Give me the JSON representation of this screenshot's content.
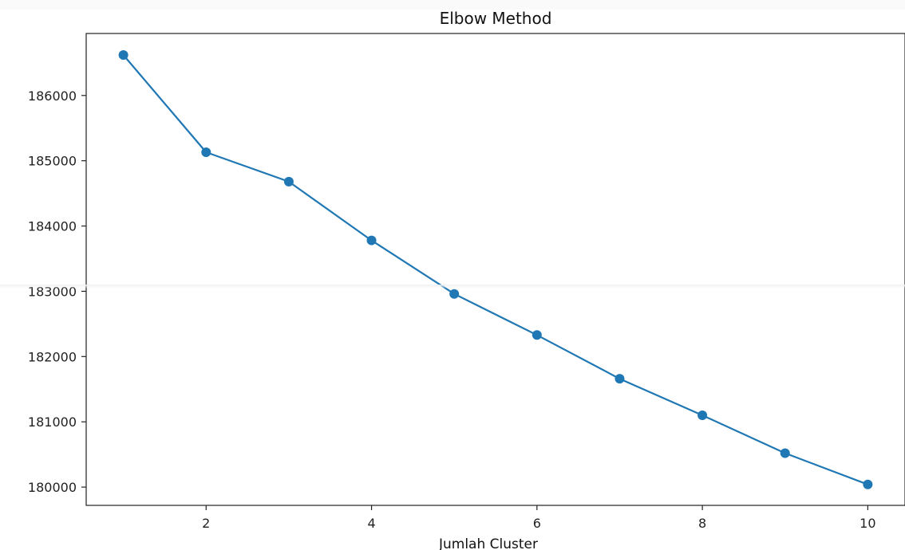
{
  "chart_data": {
    "type": "line",
    "title": "Elbow Method",
    "xlabel": "Jumlah Cluster",
    "ylabel": "",
    "x": [
      1,
      2,
      3,
      4,
      5,
      6,
      7,
      8,
      9,
      10
    ],
    "series": [
      {
        "values": [
          186620,
          185130,
          184680,
          183780,
          182960,
          182330,
          181660,
          181100,
          180520,
          180040
        ],
        "color": "#1f77b4",
        "marker": "circle"
      }
    ],
    "xticks": [
      2,
      4,
      6,
      8,
      10
    ],
    "yticks": [
      180000,
      181000,
      182000,
      183000,
      184000,
      185000,
      186000
    ],
    "xlim": [
      0.55,
      10.45
    ],
    "ylim": [
      179720,
      186950
    ],
    "grid": false,
    "legend": "none"
  }
}
